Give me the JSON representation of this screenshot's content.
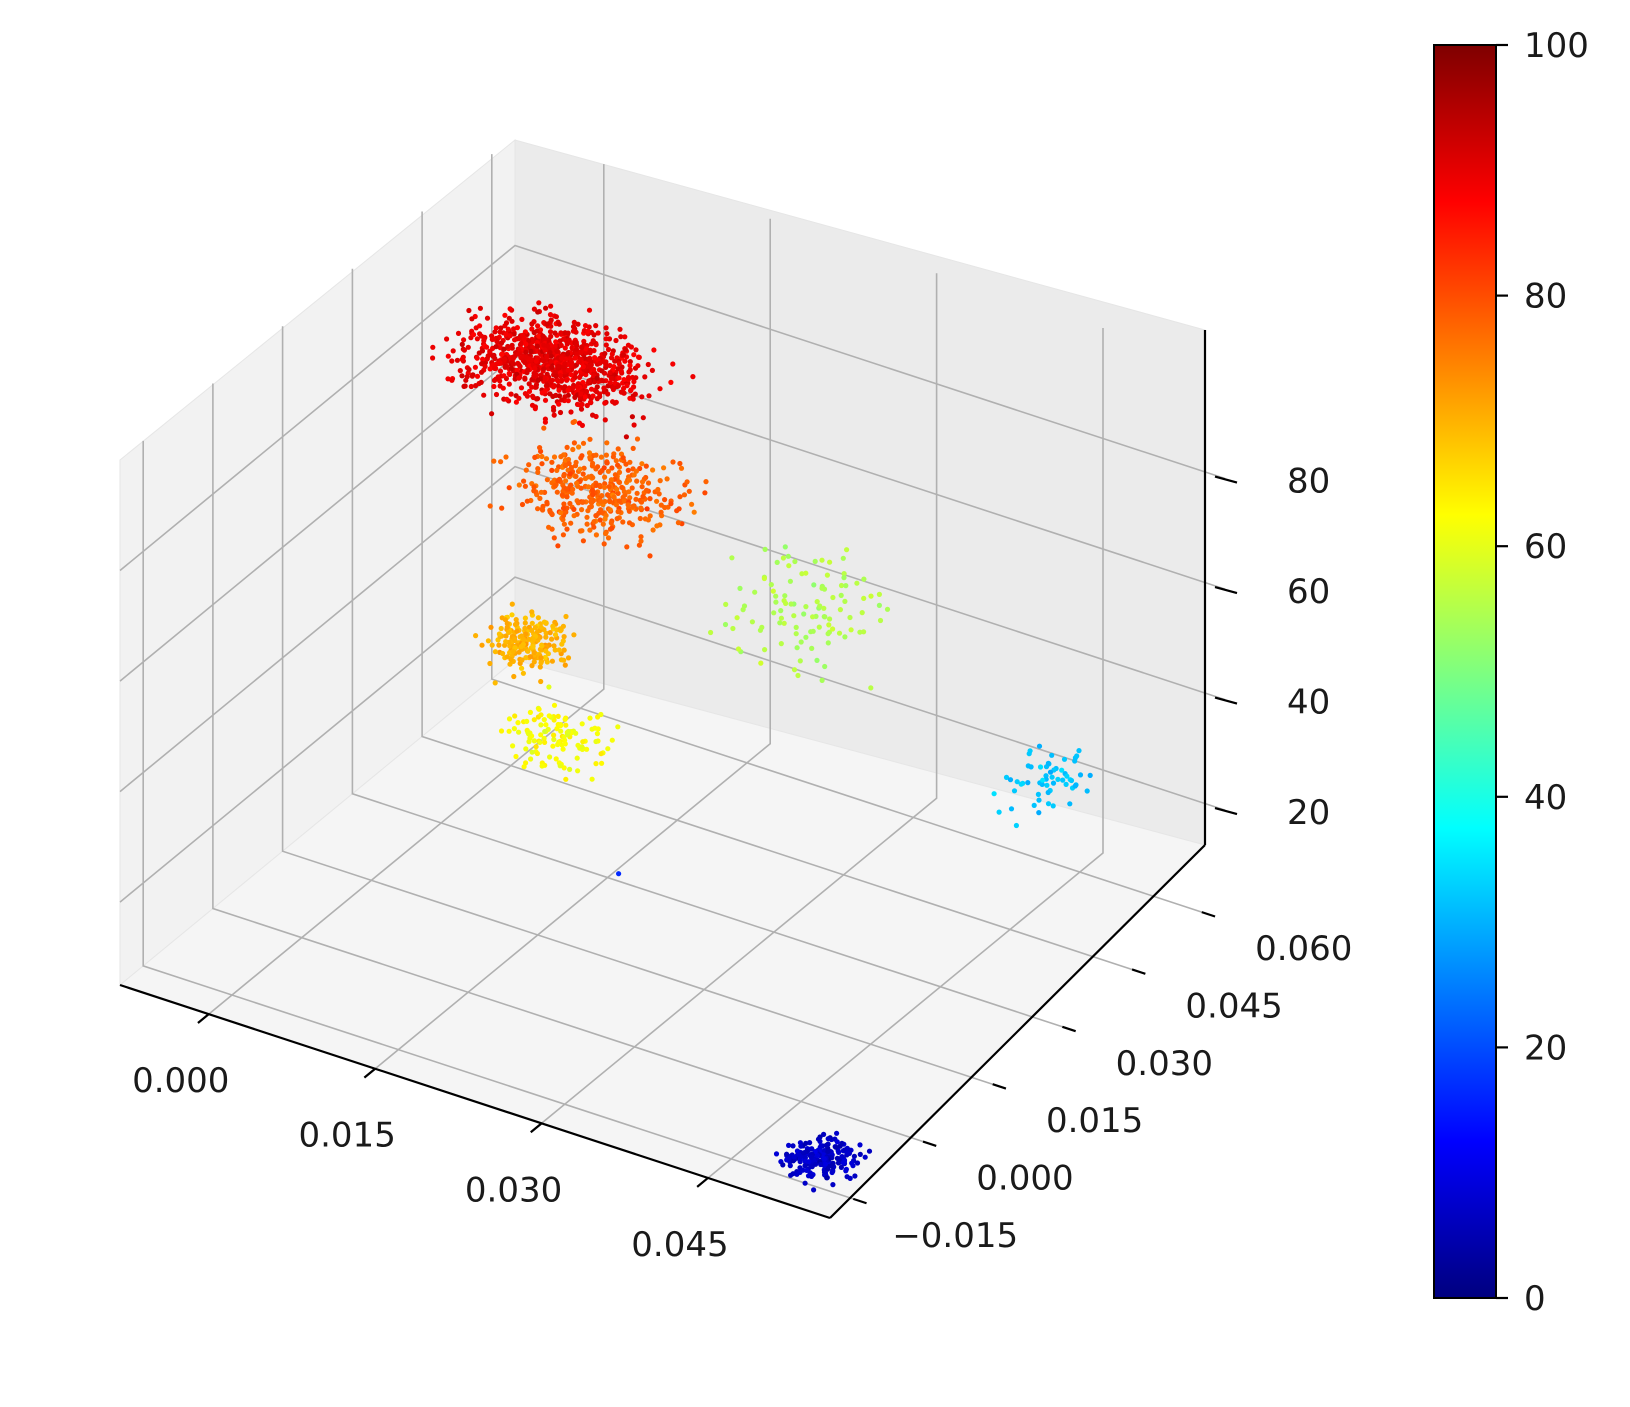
{
  "chart_data": {
    "type": "scatter",
    "projection": "3d",
    "title": "",
    "xlabel": "",
    "ylabel": "",
    "zlabel": "",
    "grid": true,
    "x_axis": {
      "ticks": [
        0.0,
        0.015,
        0.03,
        0.045
      ],
      "tick_labels": [
        "0.000",
        "0.015",
        "0.030",
        "0.045"
      ],
      "range": [
        -0.008,
        0.056
      ]
    },
    "y_axis": {
      "ticks": [
        -0.015,
        0.0,
        0.015,
        0.03,
        0.045,
        0.06
      ],
      "tick_labels": [
        "−0.015",
        "0.000",
        "0.015",
        "0.030",
        "0.045",
        "0.060"
      ],
      "range": [
        -0.02,
        0.065
      ]
    },
    "z_axis": {
      "ticks": [
        20,
        40,
        60,
        80
      ],
      "tick_labels": [
        "20",
        "40",
        "60",
        "80"
      ],
      "range": [
        5,
        100
      ]
    },
    "colorbar": {
      "label": "",
      "colormap": "jet",
      "range": [
        0,
        100
      ],
      "ticks": [
        0,
        20,
        40,
        60,
        80,
        100
      ],
      "tick_labels": [
        "0",
        "20",
        "40",
        "60",
        "80",
        "100"
      ],
      "colormap_stops": [
        "#00007f",
        "#0000ff",
        "#007fff",
        "#00ffff",
        "#7fff7f",
        "#ffff00",
        "#ff7f00",
        "#ff0000",
        "#7f0000"
      ]
    },
    "clusters": [
      {
        "name": "",
        "x_range": [
          -0.004,
          0.018
        ],
        "y_range": [
          0.025,
          0.05
        ],
        "z_range": [
          83,
          92
        ],
        "color_value": 90,
        "count": 900
      },
      {
        "name": "",
        "x_range": [
          0.006,
          0.025
        ],
        "y_range": [
          0.015,
          0.04
        ],
        "z_range": [
          70,
          84
        ],
        "color_value": 78,
        "count": 400
      },
      {
        "name": "",
        "x_range": [
          0.011,
          0.02
        ],
        "y_range": [
          0.005,
          0.02
        ],
        "z_range": [
          55,
          65
        ],
        "color_value": 70,
        "count": 200
      },
      {
        "name": "",
        "x_range": [
          0.014,
          0.026
        ],
        "y_range": [
          0.0,
          0.015
        ],
        "z_range": [
          42,
          56
        ],
        "color_value": 62,
        "count": 120
      },
      {
        "name": "",
        "x_range": [
          0.022,
          0.04
        ],
        "y_range": [
          0.02,
          0.05
        ],
        "z_range": [
          50,
          72
        ],
        "color_value": 55,
        "count": 110
      },
      {
        "name": "",
        "x_range": [
          0.042,
          0.05
        ],
        "y_range": [
          0.04,
          0.06
        ],
        "z_range": [
          22,
          38
        ],
        "color_value": 32,
        "count": 60
      },
      {
        "name": "",
        "x_range": [
          0.048,
          0.056
        ],
        "y_range": [
          -0.018,
          -0.006
        ],
        "z_range": [
          5,
          10
        ],
        "color_value": 7,
        "count": 220
      },
      {
        "name": "",
        "x_range": [
          0.02,
          0.021
        ],
        "y_range": [
          0.019,
          0.02
        ],
        "z_range": [
          16,
          17
        ],
        "color_value": 18,
        "count": 1
      }
    ]
  }
}
